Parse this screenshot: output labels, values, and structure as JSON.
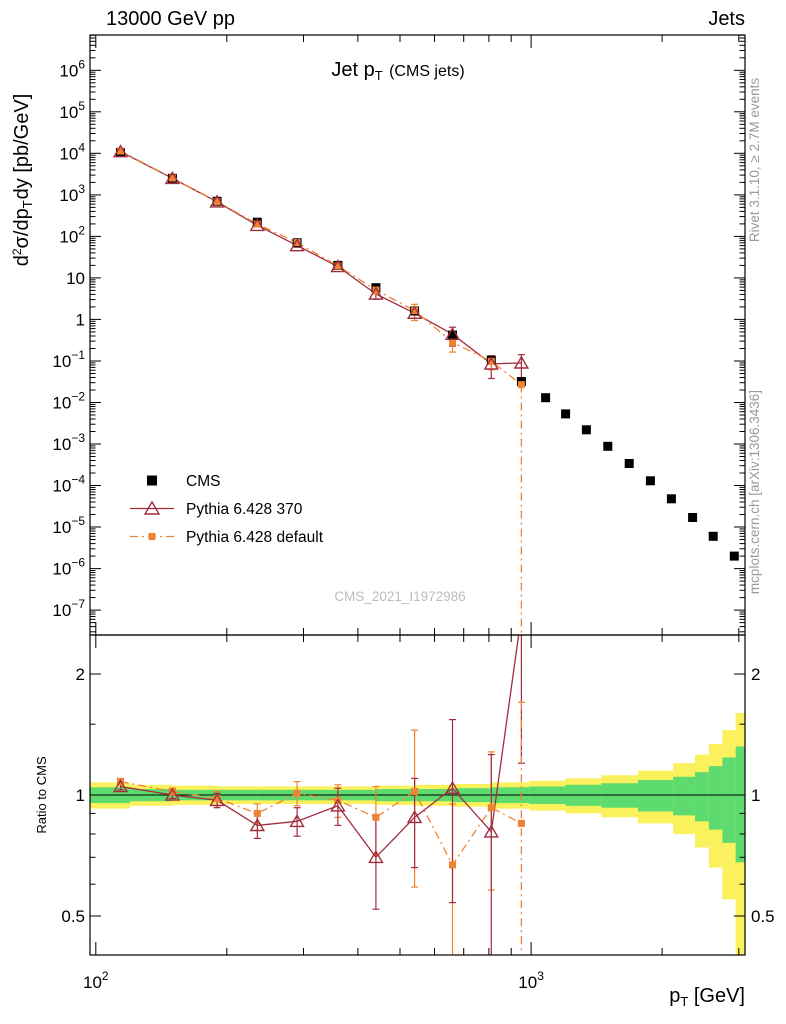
{
  "header": {
    "left": "13000 GeV pp",
    "right": "Jets"
  },
  "side_notes": {
    "top_rotated": "Rivet 3.1.10, ≥ 2.7M events",
    "bottom_rotated": "mcplots.cern.ch [arXiv:1306.3436]"
  },
  "watermark": "CMS_2021_I1972986",
  "labels": {
    "title_pre": "Jet p",
    "title_sub": "T",
    "title_post": " (CMS jets)",
    "xlabel_pre": "p",
    "xlabel_sub": "T",
    "xlabel_post": " [GeV]",
    "ylabel_pre": "d",
    "ylabel_sup": "2",
    "ylabel_mid": "σ/dp",
    "ylabel_sub": "T",
    "ylabel_post": "dy [pb/GeV]",
    "ratio_ylabel": "Ratio to CMS"
  },
  "colors": {
    "cms": "#000000",
    "pythia370": "#a22c3e",
    "pythia_default": "#ee8433",
    "band_yellow": "#fbf15c",
    "band_green": "#5ddb6e",
    "frame": "#000000",
    "side_text": "#9a9a9a",
    "watermark_text": "#bcbcbc"
  },
  "chart_data": {
    "type": "scatter",
    "x_scale": "log",
    "y_scale": "log",
    "title": "Jet pT (CMS jets)",
    "xlabel": "pT [GeV]",
    "ylabel": "d2σ/dpT dy [pb/GeV]",
    "ratio_ylabel": "Ratio to CMS",
    "legend_position": "middle-left",
    "x_range": [
      97,
      3100
    ],
    "y_range_exp": [
      -7.6,
      6.85
    ],
    "ratio_range": [
      0.4,
      2.5
    ],
    "y_ticks_exp": [
      6,
      5,
      4,
      3,
      2,
      1,
      0,
      -1,
      -2,
      -3,
      -4,
      -5,
      -6,
      -7
    ],
    "x_ticks_exp": [
      2,
      3
    ],
    "ratio_ticks": [
      0.5,
      1,
      2
    ],
    "ratio_minor_ticks": [
      0.6,
      0.7,
      0.8,
      0.9,
      1.5
    ],
    "mc_end_x": 950,
    "series": [
      {
        "name": "CMS",
        "marker": "filled-square",
        "color_key": "cms",
        "x": [
          114,
          150,
          190,
          235,
          290,
          360,
          440,
          540,
          660,
          810,
          950,
          1080,
          1200,
          1340,
          1500,
          1680,
          1880,
          2100,
          2350,
          2620,
          2930
        ],
        "y": [
          10500,
          2500,
          700,
          220,
          70,
          20,
          5.8,
          1.6,
          0.42,
          0.105,
          0.032,
          0.013,
          0.0053,
          0.0022,
          0.00088,
          0.00034,
          0.00013,
          4.8e-05,
          1.7e-05,
          6e-06,
          2e-06
        ]
      },
      {
        "name": "Pythia 6.428 370",
        "marker": "open-triangle",
        "line": "solid",
        "color_key": "pythia370",
        "x": [
          114,
          150,
          190,
          235,
          290,
          360,
          440,
          540,
          660,
          810,
          950
        ],
        "y": [
          11000,
          2500,
          680,
          185,
          60,
          18.8,
          4.1,
          1.41,
          0.44,
          0.085,
          0.09
        ],
        "ratio": [
          1.05,
          1.0,
          0.97,
          0.84,
          0.86,
          0.94,
          0.7,
          0.88,
          1.04,
          0.81,
          2.8
        ],
        "ratio_err": [
          0.02,
          0.02,
          0.04,
          0.06,
          0.07,
          0.1,
          0.18,
          0.22,
          0.5,
          0.45,
          1.6
        ]
      },
      {
        "name": "Pythia 6.428 default",
        "marker": "filled-square",
        "line": "dashdot",
        "color_key": "pythia_default",
        "x": [
          114,
          150,
          190,
          235,
          290,
          360,
          440,
          540,
          660,
          810,
          950
        ],
        "y": [
          11300,
          2550,
          690,
          198,
          71,
          19.4,
          5.1,
          1.63,
          0.28,
          0.098,
          0.027
        ],
        "ratio": [
          1.08,
          1.02,
          0.98,
          0.9,
          1.01,
          0.97,
          0.88,
          1.02,
          0.67,
          0.93,
          0.85
        ],
        "ratio_err": [
          0.02,
          0.02,
          0.04,
          0.05,
          0.07,
          0.09,
          0.17,
          0.43,
          0.28,
          0.35,
          0.85
        ]
      }
    ],
    "bands": {
      "edges": [
        97,
        120,
        150,
        190,
        235,
        290,
        360,
        440,
        540,
        660,
        810,
        990,
        1200,
        1450,
        1760,
        2120,
        2380,
        2560,
        2750,
        2950,
        3103
      ],
      "yellow": [
        0.075,
        0.06,
        0.055,
        0.05,
        0.05,
        0.05,
        0.05,
        0.055,
        0.06,
        0.065,
        0.075,
        0.085,
        0.1,
        0.12,
        0.15,
        0.2,
        0.26,
        0.34,
        0.45,
        0.6
      ],
      "green": [
        0.045,
        0.035,
        0.03,
        0.03,
        0.03,
        0.03,
        0.03,
        0.035,
        0.035,
        0.04,
        0.045,
        0.05,
        0.06,
        0.07,
        0.09,
        0.11,
        0.14,
        0.18,
        0.24,
        0.32
      ]
    }
  }
}
